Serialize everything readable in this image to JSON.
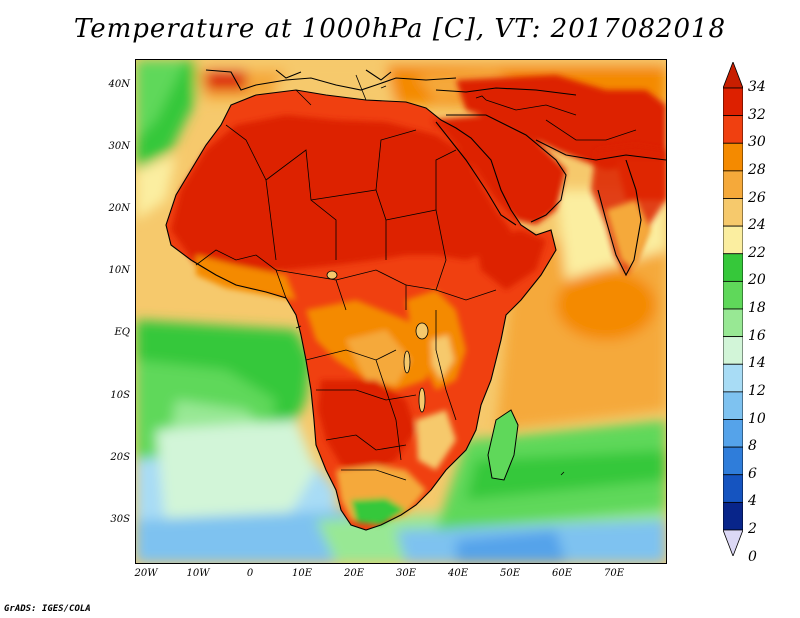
{
  "title": "Temperature at 1000hPa [C], VT: 2017082018",
  "credit": "GrADS: IGES/COLA",
  "map": {
    "lat_labels": [
      "40N",
      "30N",
      "20N",
      "10N",
      "EQ",
      "10S",
      "20S",
      "30S"
    ],
    "lon_labels": [
      "20W",
      "10W",
      "0",
      "10E",
      "20E",
      "30E",
      "40E",
      "50E",
      "60E",
      "70E"
    ],
    "extent": {
      "lon_min": -23,
      "lon_max": 80,
      "lat_min": -37,
      "lat_max": 45
    },
    "land_color": "#000000"
  },
  "colorbar": {
    "labels": [
      "34",
      "32",
      "30",
      "28",
      "26",
      "24",
      "22",
      "20",
      "18",
      "16",
      "14",
      "12",
      "10",
      "8",
      "6",
      "4",
      "2",
      "0"
    ],
    "colors": [
      "#dd2000",
      "#f04010",
      "#f48a00",
      "#f5a93a",
      "#f6c96c",
      "#fbeea0",
      "#36c83a",
      "#5fd85a",
      "#98e894",
      "#d2f5d8",
      "#a8dcf5",
      "#7ec2f0",
      "#55a3ea",
      "#2f7dda",
      "#1554c0",
      "#08258a"
    ],
    "under_color": "#dcd8f5",
    "over_color": "#c81e00"
  }
}
